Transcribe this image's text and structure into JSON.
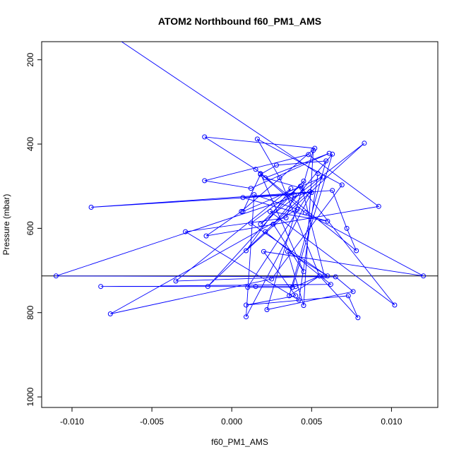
{
  "chart_data": {
    "type": "scatter",
    "title": "ATOM2 Northbound f60_PM1_AMS",
    "xlabel": "f60_PM1_AMS",
    "ylabel": "Pressure (mbar)",
    "xlim": [
      -0.0119,
      0.0129
    ],
    "ylim": [
      1025,
      157
    ],
    "y_reversed": true,
    "x_ticks": [
      -0.01,
      -0.005,
      0.0,
      0.005,
      0.01
    ],
    "x_tick_labels": [
      "-0.010",
      "-0.005",
      "0.000",
      "0.005",
      "0.010"
    ],
    "y_ticks": [
      1000,
      800,
      600,
      400,
      200
    ],
    "y_tick_labels": [
      "1000",
      "800",
      "600",
      "400",
      "200"
    ],
    "series_color": "#0000ff",
    "reference_line": {
      "y": 713,
      "color": "#000000"
    },
    "series": [
      {
        "style": "points-and-lines",
        "x": [
          -0.0069,
          0.0054,
          0.0042,
          -0.0029,
          0.0034,
          0.0039,
          -0.0088,
          0.0063,
          0.0072,
          0.0078,
          0.0015,
          -0.0017,
          0.0052,
          0.0006,
          -0.0016,
          0.0092,
          0.0048,
          -0.0017,
          0.0012,
          0.0061,
          0.0021,
          0.0044,
          0.0058,
          -0.0035,
          0.0037,
          0.0009,
          0.0083,
          0.0018,
          0.0045,
          -0.0015,
          0.0057,
          0.0007,
          0.0018,
          0.0028,
          0.0059,
          0.0036,
          0.0055,
          0.003,
          0.0016,
          0.0069,
          0.0025,
          -0.0076,
          0.0041,
          0.0014,
          0.0009,
          0.005,
          0.0007,
          0.006,
          0.0024,
          0.0102,
          0.0043,
          0.0012,
          0.006,
          0.0035,
          0.0045,
          0.0051,
          0.0022,
          0.0076,
          0.0065,
          -0.011,
          0.0049,
          0.001,
          0.0038,
          0.0063,
          0.0026,
          0.0045,
          0.0018,
          0.0046,
          0.012,
          0.002,
          0.004,
          0.0009,
          0.0073,
          0.0079,
          0.0055,
          0.004,
          0.0015,
          -0.0082,
          0.0062,
          0.0021
        ],
        "y": [
          157,
          470,
          770,
          608,
          575,
          520,
          550,
          510,
          600,
          653,
          460,
          383,
          410,
          560,
          618,
          548,
          425,
          487,
          505,
          422,
          480,
          505,
          713,
          725,
          505,
          653,
          398,
          590,
          488,
          738,
          478,
          560,
          472,
          450,
          440,
          760,
          713,
          480,
          388,
          497,
          720,
          803,
          555,
          520,
          810,
          515,
          527,
          583,
          560,
          782,
          500,
          588,
          713,
          655,
          783,
          415,
          793,
          750,
          715,
          713,
          513,
          740,
          740,
          424,
          590,
          703,
          470,
          563,
          713,
          655,
          760,
          782,
          760,
          812,
          713,
          738,
          738,
          738,
          733,
          608
        ]
      }
    ]
  }
}
